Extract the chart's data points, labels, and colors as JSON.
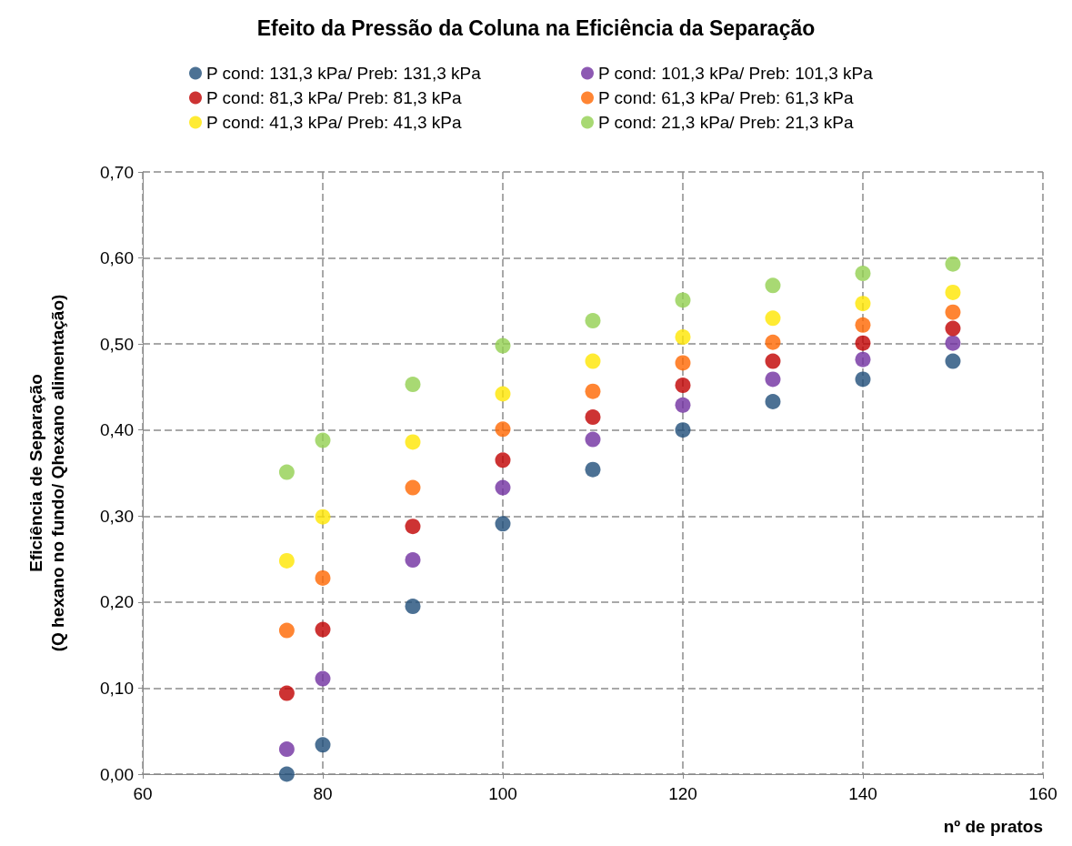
{
  "chart_data": {
    "type": "scatter",
    "title": "Efeito da Pressão da Coluna na Eficiência da Separação",
    "xlabel": "nº de pratos",
    "ylabel": "Eficiência de Separação\n(Q hexano no fundo/ Qhexano alimentação)",
    "x": [
      76,
      80,
      90,
      100,
      110,
      120,
      130,
      140,
      150
    ],
    "series": [
      {
        "name": "P cond: 131,3 kPa/ Preb: 131,3 kPa",
        "color": "#1f4e79",
        "values": [
          0.0,
          0.034,
          0.195,
          0.291,
          0.354,
          0.4,
          0.433,
          0.459,
          0.48
        ]
      },
      {
        "name": "P cond: 101,3 kPa/ Preb: 101,3 kPa",
        "color": "#7030a0",
        "values": [
          0.029,
          0.111,
          0.249,
          0.333,
          0.389,
          0.429,
          0.459,
          0.482,
          0.501
        ]
      },
      {
        "name": "P cond: 81,3 kPa/ Preb: 81,3 kPa",
        "color": "#c00000",
        "values": [
          0.094,
          0.168,
          0.288,
          0.365,
          0.415,
          0.452,
          0.48,
          0.501,
          0.518
        ]
      },
      {
        "name": "P cond: 61,3 kPa/ Preb: 61,3 kPa",
        "color": "#ff6600",
        "values": [
          0.167,
          0.228,
          0.333,
          0.401,
          0.445,
          0.478,
          0.502,
          0.522,
          0.537
        ]
      },
      {
        "name": "P cond: 41,3 kPa/ Preb: 41,3 kPa",
        "color": "#ffe600",
        "values": [
          0.248,
          0.299,
          0.386,
          0.442,
          0.48,
          0.508,
          0.53,
          0.547,
          0.56
        ]
      },
      {
        "name": "P cond: 21,3 kPa/ Preb: 21,3 kPa",
        "color": "#92d050",
        "values": [
          0.351,
          0.388,
          0.453,
          0.498,
          0.527,
          0.551,
          0.568,
          0.582,
          0.593
        ]
      }
    ],
    "xlim": [
      60,
      160
    ],
    "xticks": [
      60,
      80,
      100,
      120,
      140,
      160
    ],
    "ylim": [
      0,
      0.7
    ],
    "yticks": [
      {
        "value": 0,
        "label": "0,00"
      },
      {
        "value": 0.1,
        "label": "0,10"
      },
      {
        "value": 0.2,
        "label": "0,20"
      },
      {
        "value": 0.3,
        "label": "0,30"
      },
      {
        "value": 0.4,
        "label": "0,40"
      },
      {
        "value": 0.5,
        "label": "0,50"
      },
      {
        "value": 0.6,
        "label": "0,60"
      },
      {
        "value": 0.7,
        "label": "0,70"
      }
    ],
    "grid": true,
    "legend": "top",
    "marker": "circle"
  }
}
